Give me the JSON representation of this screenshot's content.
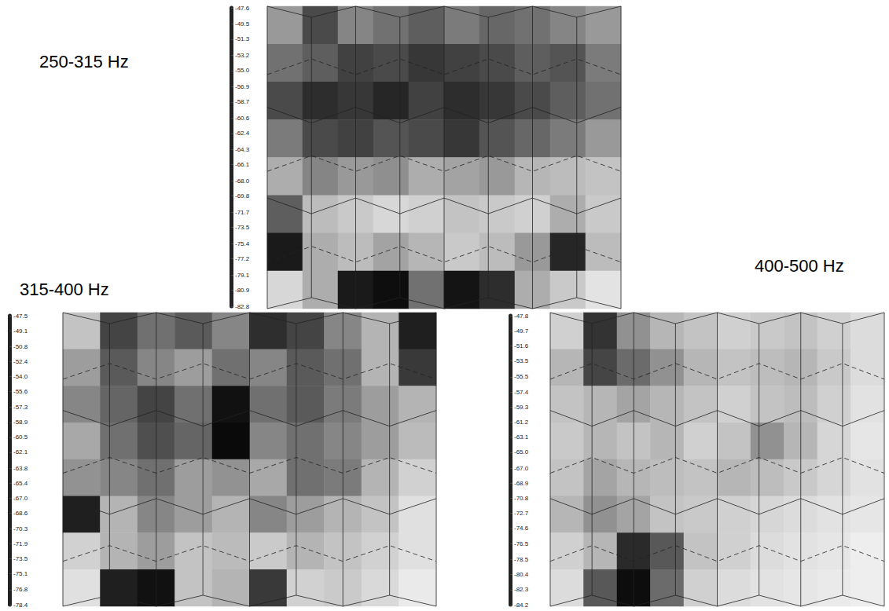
{
  "chart_data": [
    {
      "type": "heatmap",
      "title": "250-315 Hz",
      "tick_labels": false,
      "cells": [
        [
          -66,
          -58,
          -64,
          -62,
          -60,
          -63,
          -61,
          -62,
          -64,
          -66
        ],
        [
          -62,
          -60,
          -57,
          -58,
          -56,
          -57,
          -58,
          -60,
          -59,
          -63
        ],
        [
          -58,
          -55,
          -56,
          -54,
          -57,
          -55,
          -56,
          -58,
          -60,
          -62
        ],
        [
          -63,
          -58,
          -57,
          -59,
          -58,
          -56,
          -59,
          -61,
          -63,
          -66
        ],
        [
          -68,
          -64,
          -66,
          -65,
          -68,
          -67,
          -66,
          -69,
          -70,
          -71
        ],
        [
          -60,
          -70,
          -72,
          -74,
          -73,
          -71,
          -72,
          -73,
          -68,
          -72
        ],
        [
          -52,
          -68,
          -70,
          -67,
          -69,
          -72,
          -70,
          -66,
          -54,
          -70
        ],
        [
          -74,
          -68,
          -52,
          -50,
          -62,
          -51,
          -55,
          -68,
          -72,
          -76
        ]
      ],
      "colorbar": {
        "range": [
          -82.8,
          -47.6
        ],
        "ticks": [
          -47.6,
          -49.5,
          -51.3,
          -53.2,
          {
            "value": -55,
            "label": "-55.0"
          },
          -56.9,
          -58.7,
          -60.6,
          -62.4,
          -64.3,
          -66.1,
          {
            "value": -68,
            "label": "-68.0"
          },
          -69.8,
          -71.7,
          -73.5,
          -75.4,
          -77.2,
          -79.1,
          -80.9,
          -82.8
        ]
      }
    },
    {
      "type": "heatmap",
      "title": "315-400 Hz",
      "tick_labels": false,
      "cells": [
        [
          -68,
          -56,
          -60,
          -58,
          -62,
          -54,
          -56,
          -62,
          -66,
          -52
        ],
        [
          -64,
          -58,
          -62,
          -64,
          -60,
          -62,
          -58,
          -60,
          -66,
          -55
        ],
        [
          -62,
          -59,
          -56,
          -60,
          -50,
          -60,
          -58,
          -61,
          -64,
          -66
        ],
        [
          -65,
          -60,
          -57,
          -59,
          -49,
          -62,
          -60,
          -62,
          -64,
          -67
        ],
        [
          -63,
          -62,
          -60,
          -64,
          -63,
          -65,
          -60,
          -61,
          -66,
          -70
        ],
        [
          -52,
          -66,
          -62,
          -64,
          -66,
          -62,
          -64,
          -66,
          -68,
          -72
        ],
        [
          -70,
          -66,
          -64,
          -68,
          -67,
          -69,
          -66,
          -68,
          -70,
          -72
        ],
        [
          -72,
          -52,
          -50,
          -68,
          -66,
          -55,
          -70,
          -69,
          -71,
          -74
        ]
      ],
      "colorbar": {
        "range": [
          -78.4,
          -47.5
        ],
        "ticks": [
          -47.5,
          -49.1,
          -50.8,
          -52.4,
          {
            "value": -54,
            "label": "-54.0"
          },
          -55.6,
          -57.3,
          -58.9,
          -60.5,
          -62.1,
          -63.8,
          -65.4,
          {
            "value": -67,
            "label": "-67.0"
          },
          -68.6,
          -70.3,
          -71.9,
          -73.5,
          -75.1,
          -76.8,
          -78.4
        ]
      }
    },
    {
      "type": "heatmap",
      "title": "400-500 Hz",
      "tick_labels": false,
      "cells": [
        [
          -74,
          -56,
          -66,
          -70,
          -72,
          -74,
          -73,
          -72,
          -74,
          -76
        ],
        [
          -70,
          -58,
          -62,
          -66,
          -70,
          -72,
          -71,
          -70,
          -73,
          -76
        ],
        [
          -72,
          -70,
          -68,
          -70,
          -72,
          -74,
          -72,
          -71,
          -74,
          -77
        ],
        [
          -73,
          -70,
          -72,
          -70,
          -74,
          -72,
          -66,
          -70,
          -75,
          -78
        ],
        [
          -72,
          -68,
          -70,
          -71,
          -72,
          -70,
          -71,
          -73,
          -75,
          -77
        ],
        [
          -70,
          -66,
          -68,
          -72,
          -73,
          -74,
          -75,
          -76,
          -77,
          -78
        ],
        [
          -74,
          -70,
          -55,
          -60,
          -72,
          -74,
          -76,
          -77,
          -78,
          -80
        ],
        [
          -76,
          -60,
          -50,
          -62,
          -74,
          -76,
          -77,
          -78,
          -79,
          -80
        ]
      ],
      "colorbar": {
        "range": [
          -84.2,
          -47.8
        ],
        "ticks": [
          -47.8,
          -49.7,
          -51.6,
          -53.5,
          -55.5,
          -57.4,
          -59.3,
          -61.2,
          -63.1,
          {
            "value": -65,
            "label": "-65.0"
          },
          {
            "value": -67,
            "label": "-67.0"
          },
          -68.9,
          -70.8,
          -72.7,
          -74.6,
          -76.5,
          -78.5,
          -80.4,
          -82.3,
          -84.2
        ]
      }
    }
  ]
}
